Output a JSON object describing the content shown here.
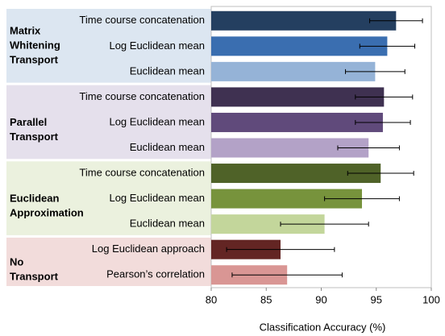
{
  "chart_data": {
    "type": "bar",
    "orientation": "horizontal",
    "xlabel": "Classification Accuracy (%)",
    "xlim": [
      80,
      100
    ],
    "xticks": [
      80,
      85,
      90,
      95,
      100
    ],
    "groups": [
      {
        "label": [
          "Matrix",
          "Whitening",
          "Transport"
        ],
        "background": "#dce6f1",
        "categories": [
          "Time course concatenation",
          "Log Euclidean mean",
          "Euclidean mean"
        ],
        "values": [
          96.8,
          96.0,
          94.9
        ],
        "errors": [
          2.4,
          2.5,
          2.7
        ],
        "colors": [
          "#243f60",
          "#3a6eb0",
          "#95b3d7"
        ]
      },
      {
        "label": [
          "Parallel",
          "Transport"
        ],
        "background": "#e5e0ec",
        "categories": [
          "Time course concatenation",
          "Log Euclidean mean",
          "Euclidean mean"
        ],
        "values": [
          95.7,
          95.6,
          94.3
        ],
        "errors": [
          2.6,
          2.5,
          2.8
        ],
        "colors": [
          "#3f3151",
          "#604a7b",
          "#b3a2c7"
        ]
      },
      {
        "label": [
          "Euclidean",
          "Approximation"
        ],
        "background": "#ebf1de",
        "categories": [
          "Time course concatenation",
          "Log Euclidean mean",
          "Euclidean mean"
        ],
        "values": [
          95.4,
          93.7,
          90.3
        ],
        "errors": [
          3.0,
          3.4,
          4.0
        ],
        "colors": [
          "#4f6228",
          "#77933c",
          "#c3d69b"
        ]
      },
      {
        "label": [
          "No",
          "Transport"
        ],
        "background": "#f2dcdb",
        "categories": [
          "Log Euclidean approach",
          "Pearson’s correlation"
        ],
        "values": [
          86.3,
          86.9
        ],
        "errors": [
          4.9,
          5.0
        ],
        "colors": [
          "#632523",
          "#d99694"
        ]
      }
    ]
  }
}
